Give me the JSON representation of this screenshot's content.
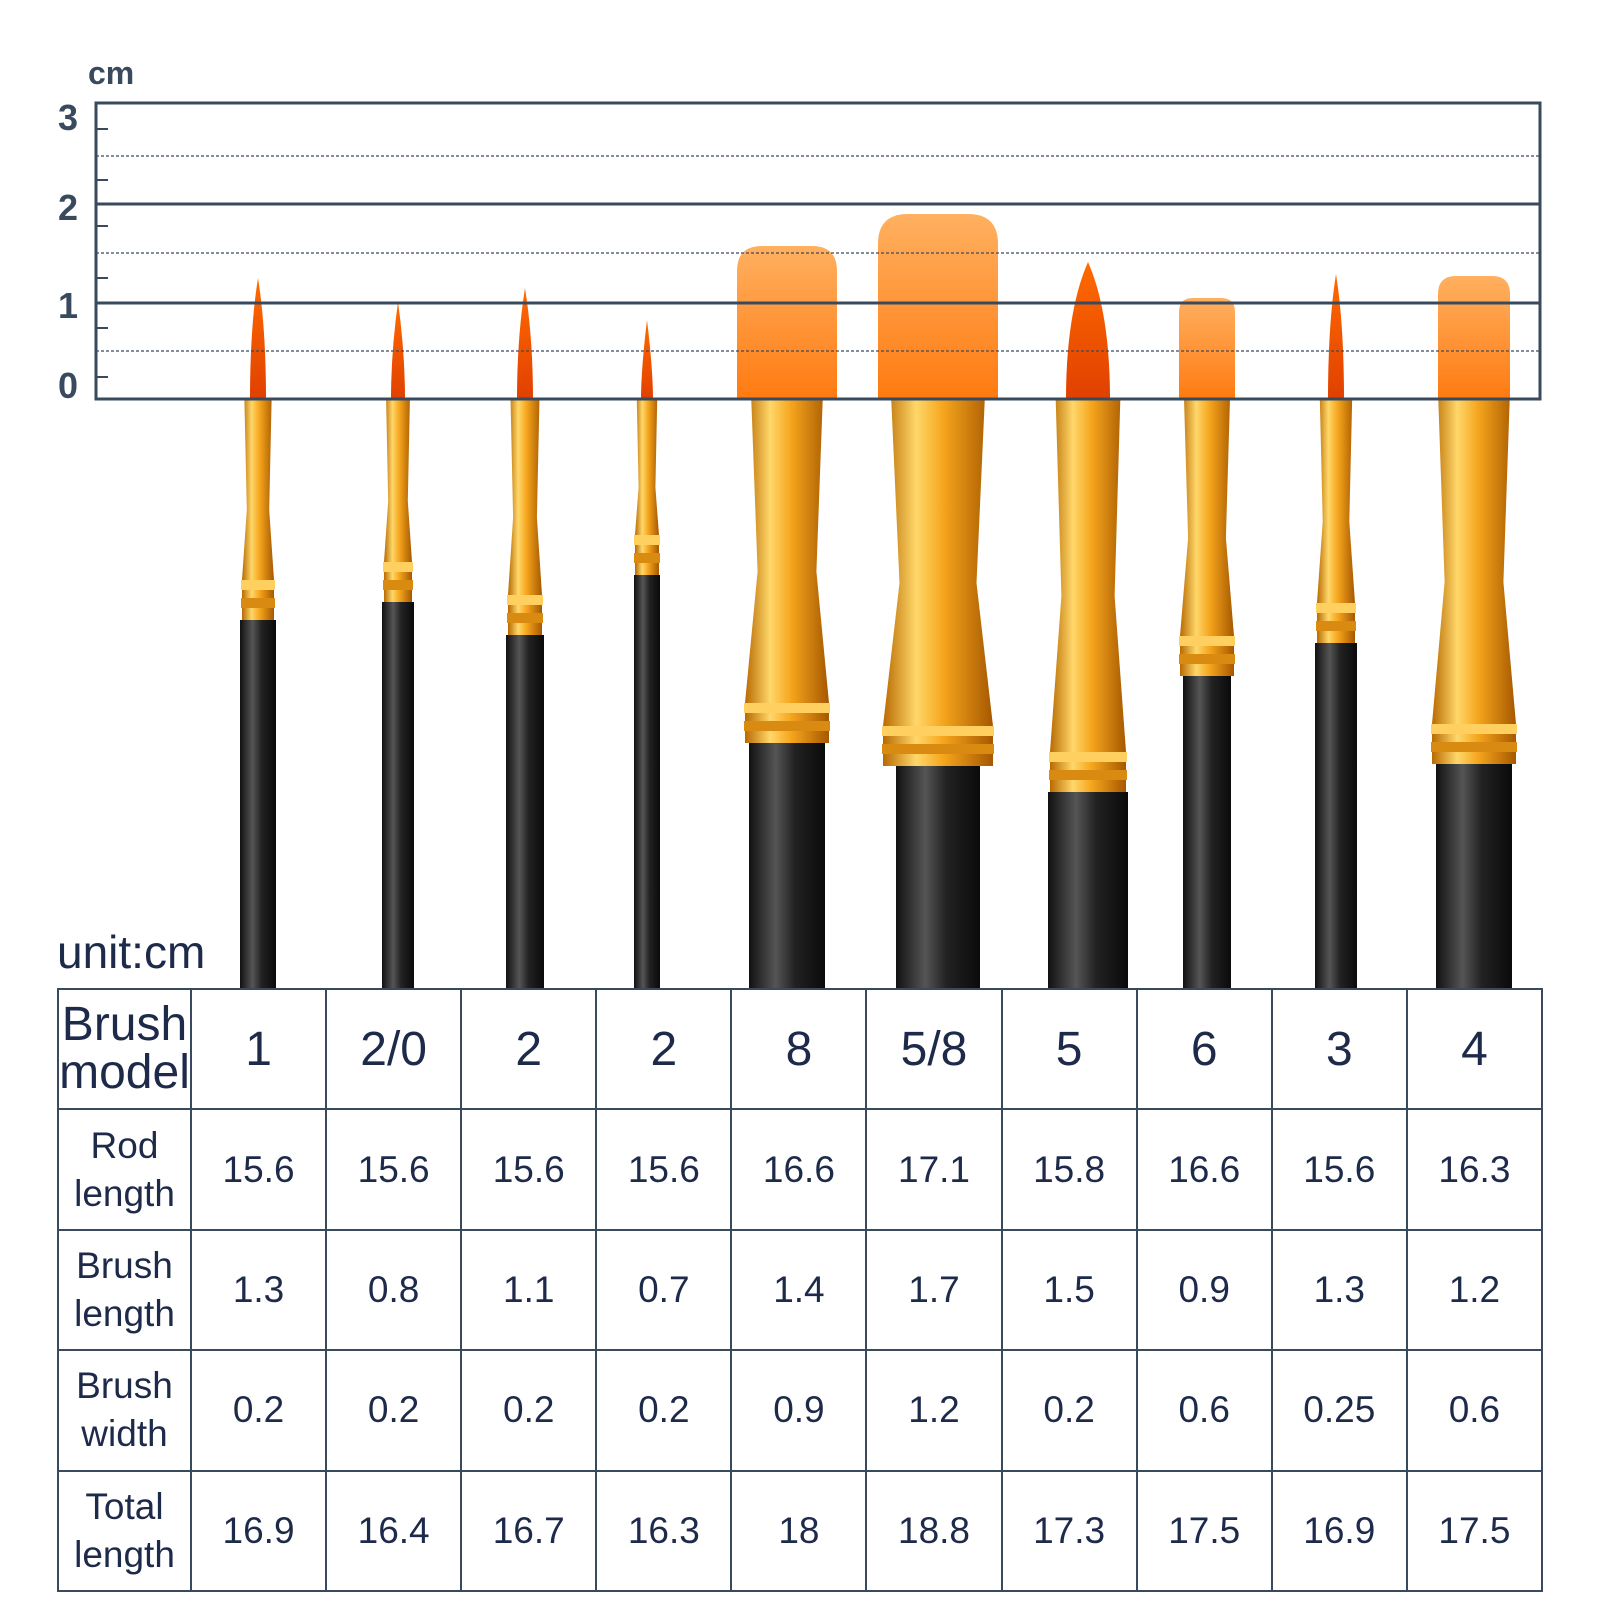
{
  "ruler": {
    "unit": "cm",
    "labels": [
      "3",
      "2",
      "1",
      "0"
    ]
  },
  "unit_note": "unit:cm",
  "table": {
    "rows": [
      [
        "Brush model",
        "1",
        "2/0",
        "2",
        "2",
        "8",
        "5/8",
        "5",
        "6",
        "3",
        "4"
      ],
      [
        "Rod length",
        "15.6",
        "15.6",
        "15.6",
        "15.6",
        "16.6",
        "17.1",
        "15.8",
        "16.6",
        "15.6",
        "16.3"
      ],
      [
        "Brush length",
        "1.3",
        "0.8",
        "1.1",
        "0.7",
        "1.4",
        "1.7",
        "1.5",
        "0.9",
        "1.3",
        "1.2"
      ],
      [
        "Brush width",
        "0.2",
        "0.2",
        "0.2",
        "0.2",
        "0.9",
        "1.2",
        "0.2",
        "0.6",
        "0.25",
        "0.6"
      ],
      [
        "Total length",
        "16.9",
        "16.4",
        "16.7",
        "16.3",
        "18",
        "18.8",
        "17.3",
        "17.5",
        "16.9",
        "17.5"
      ]
    ]
  }
}
